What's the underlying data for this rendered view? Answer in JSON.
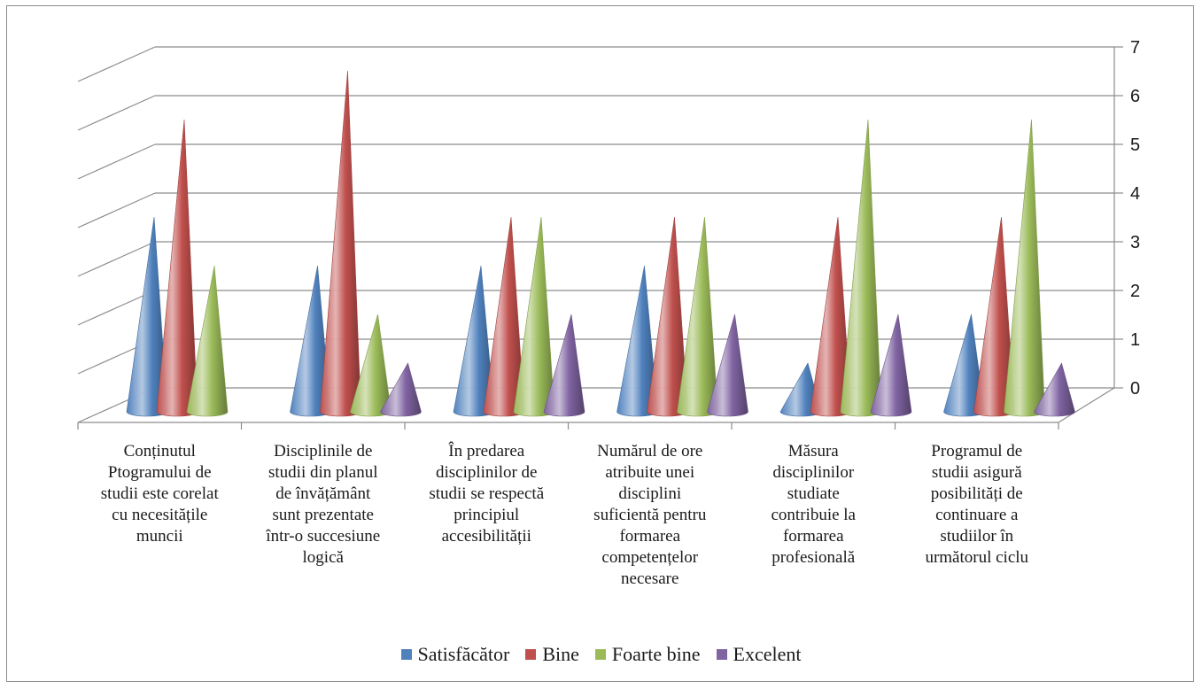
{
  "chart_data": {
    "type": "bar",
    "subtype": "3d-cone",
    "categories": [
      "Conținutul Ptogramului de studii este corelat cu necesitățile muncii",
      "Disciplinile de studii din planul de învățământ sunt prezentate într-o succesiune logică",
      "În predarea disciplinilor de studii se respectă principiul accesibilității",
      "Numărul de ore atribuite unei disciplini suficientă pentru formarea competențelor necesare",
      "Măsura disciplinilor studiate contribuie la formarea profesională",
      "Programul de studii asigură posibilități de continuare a studiilor în următorul ciclu"
    ],
    "category_lines": [
      [
        "Conținutul",
        "Ptogramului de",
        "studii este corelat",
        "cu necesitățile",
        "muncii"
      ],
      [
        "Disciplinile de",
        "studii din planul",
        "de învățământ",
        "sunt prezentate",
        "într-o succesiune",
        "logică"
      ],
      [
        "În predarea",
        "disciplinilor de",
        "studii se respectă",
        "principiul",
        "accesibilității"
      ],
      [
        "Numărul de ore",
        "atribuite unei",
        "disciplini",
        "suficientă pentru",
        "formarea",
        "competențelor",
        "necesare"
      ],
      [
        "Măsura",
        "disciplinilor",
        "studiate",
        "contribuie la",
        "formarea",
        "profesională"
      ],
      [
        "Programul de",
        "studii asigură",
        "posibilități de",
        "continuare a",
        "studiilor în",
        "următorul ciclu"
      ]
    ],
    "series": [
      {
        "name": "Satisfăcător",
        "color": "#4f81bd",
        "values": [
          4,
          3,
          3,
          3,
          1,
          2
        ]
      },
      {
        "name": "Bine",
        "color": "#c0504d",
        "values": [
          6,
          7,
          4,
          4,
          4,
          4
        ]
      },
      {
        "name": "Foarte bine",
        "color": "#9bbb59",
        "values": [
          3,
          2,
          4,
          4,
          6,
          6
        ]
      },
      {
        "name": "Excelent",
        "color": "#8064a2",
        "values": [
          0,
          1,
          2,
          2,
          2,
          1
        ]
      }
    ],
    "yticks": [
      0,
      1,
      2,
      3,
      4,
      5,
      6,
      7
    ],
    "ylim": [
      0,
      7
    ],
    "y_axis_position": "right",
    "grid": true,
    "legend_position": "bottom"
  }
}
